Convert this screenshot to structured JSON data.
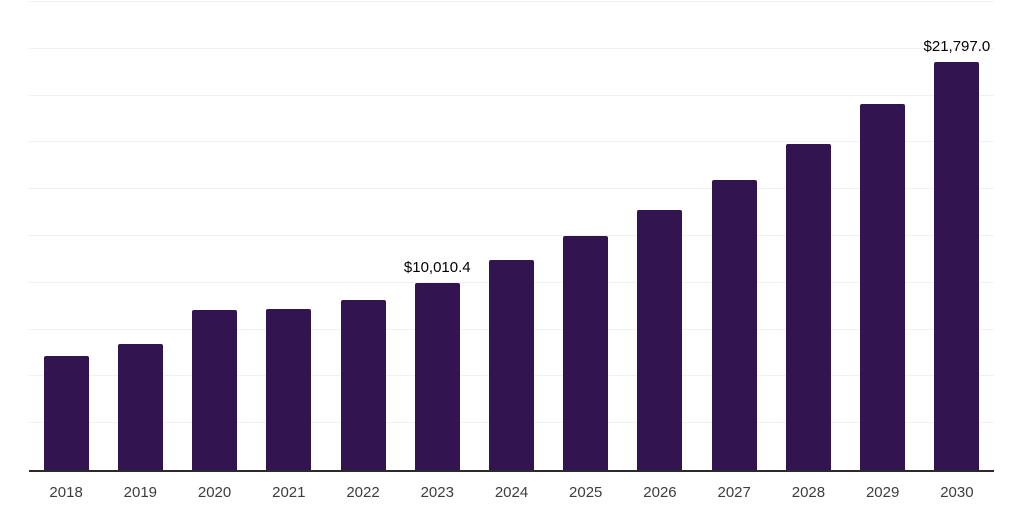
{
  "chart_data": {
    "type": "bar",
    "title": "",
    "xlabel": "",
    "ylabel": "",
    "categories": [
      "2018",
      "2019",
      "2020",
      "2021",
      "2022",
      "2023",
      "2024",
      "2025",
      "2026",
      "2027",
      "2028",
      "2029",
      "2030"
    ],
    "values": [
      6100,
      6750,
      8560,
      8620,
      9100,
      10010.4,
      11200,
      12500,
      13890,
      15500,
      17400,
      19550,
      21797
    ],
    "value_labels": {
      "2023": "$10,010.4",
      "2030": "$21,797.0"
    },
    "ylim": [
      0,
      25000
    ],
    "gridline_step": 2500,
    "grid": "horizontal-only, no y-axis tick labels",
    "legend": "none",
    "colors": {
      "bar": "#321450",
      "background": "#ffffff",
      "gridline": "#f1f1f1",
      "axis_line": "#2b2b2b",
      "tick_label": "#3d3d3d",
      "value_label": "#000000"
    }
  }
}
